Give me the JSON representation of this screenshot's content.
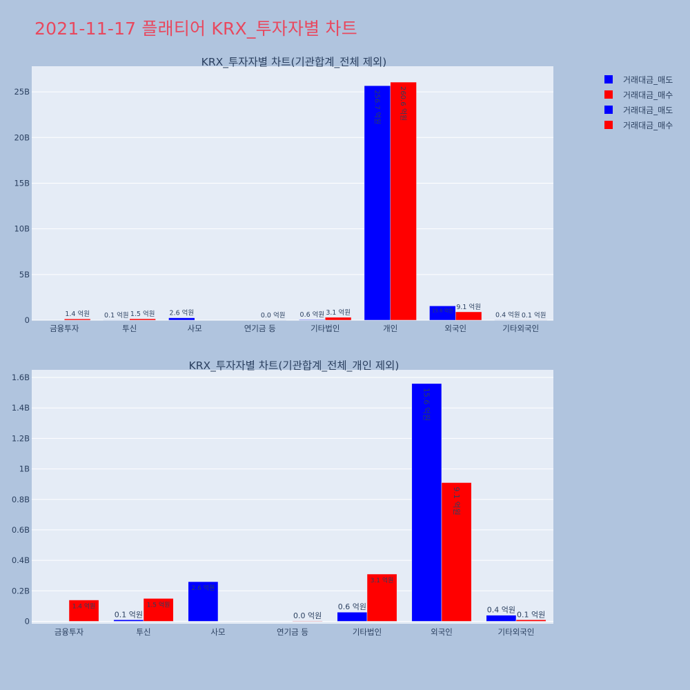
{
  "title": "2021-11-17 플래티어 KRX_투자자별 차트",
  "legend": [
    {
      "name": "거래대금_매도",
      "color": "#0000ff"
    },
    {
      "name": "거래대금_매수",
      "color": "#ff0000"
    },
    {
      "name": "거래대금_매도",
      "color": "#0000ff"
    },
    {
      "name": "거래대금_매수",
      "color": "#ff0000"
    }
  ],
  "chart_data": [
    {
      "type": "bar",
      "title": "KRX_투자자별 차트(기관합계_전체 제외)",
      "categories": [
        "금융투자",
        "투신",
        "사모",
        "연기금 등",
        "기타법인",
        "개인",
        "외국인",
        "기타외국인"
      ],
      "ylim": [
        0,
        27800000000
      ],
      "yticks": [
        0,
        5000000000,
        10000000000,
        15000000000,
        20000000000,
        25000000000
      ],
      "ytick_labels": [
        "0",
        "5B",
        "10B",
        "15B",
        "20B",
        "25B"
      ],
      "grid": true,
      "series": [
        {
          "name": "거래대금_매도",
          "color": "#0000ff",
          "values": [
            0,
            10000000,
            260000000,
            0,
            60000000,
            25670000000,
            1560000000,
            40000000
          ],
          "labels": [
            "",
            "0.1 억원",
            "2.6 억원",
            "",
            "0.6 억원",
            "256.7 억원",
            "15.6 억원",
            "0.4 억원"
          ]
        },
        {
          "name": "거래대금_매수",
          "color": "#ff0000",
          "values": [
            140000000,
            150000000,
            0,
            3000000,
            310000000,
            26060000000,
            910000000,
            10000000
          ],
          "labels": [
            "1.4 억원",
            "1.5 억원",
            "",
            "0.0 억원",
            "3.1 억원",
            "260.6 억원",
            "9.1 억원",
            "0.1 억원"
          ]
        }
      ]
    },
    {
      "type": "bar",
      "title": "KRX_투자자별 차트(기관합계_전체_개인 제외)",
      "categories": [
        "금융투자",
        "투신",
        "사모",
        "연기금 등",
        "기타법인",
        "외국인",
        "기타외국인"
      ],
      "ylim": [
        -16000000,
        1650000000
      ],
      "yticks": [
        0,
        200000000,
        400000000,
        600000000,
        800000000,
        1000000000,
        1200000000,
        1400000000,
        1600000000
      ],
      "ytick_labels": [
        "0",
        "0.2B",
        "0.4B",
        "0.6B",
        "0.8B",
        "1B",
        "1.2B",
        "1.4B",
        "1.6B"
      ],
      "grid": true,
      "series": [
        {
          "name": "거래대금_매도",
          "color": "#0000ff",
          "values": [
            0,
            10000000,
            260000000,
            0,
            60000000,
            1560000000,
            40000000
          ],
          "labels": [
            "",
            "0.1 억원",
            "2.6 억원",
            "",
            "0.6 억원",
            "15.6 억원",
            "0.4 억원"
          ]
        },
        {
          "name": "거래대금_매수",
          "color": "#ff0000",
          "values": [
            140000000,
            150000000,
            0,
            3000000,
            310000000,
            910000000,
            10000000
          ],
          "labels": [
            "1.4 억원",
            "1.5 억원",
            "",
            "0.0 억원",
            "3.1 억원",
            "9.1 억원",
            "0.1 억원"
          ]
        }
      ]
    }
  ]
}
